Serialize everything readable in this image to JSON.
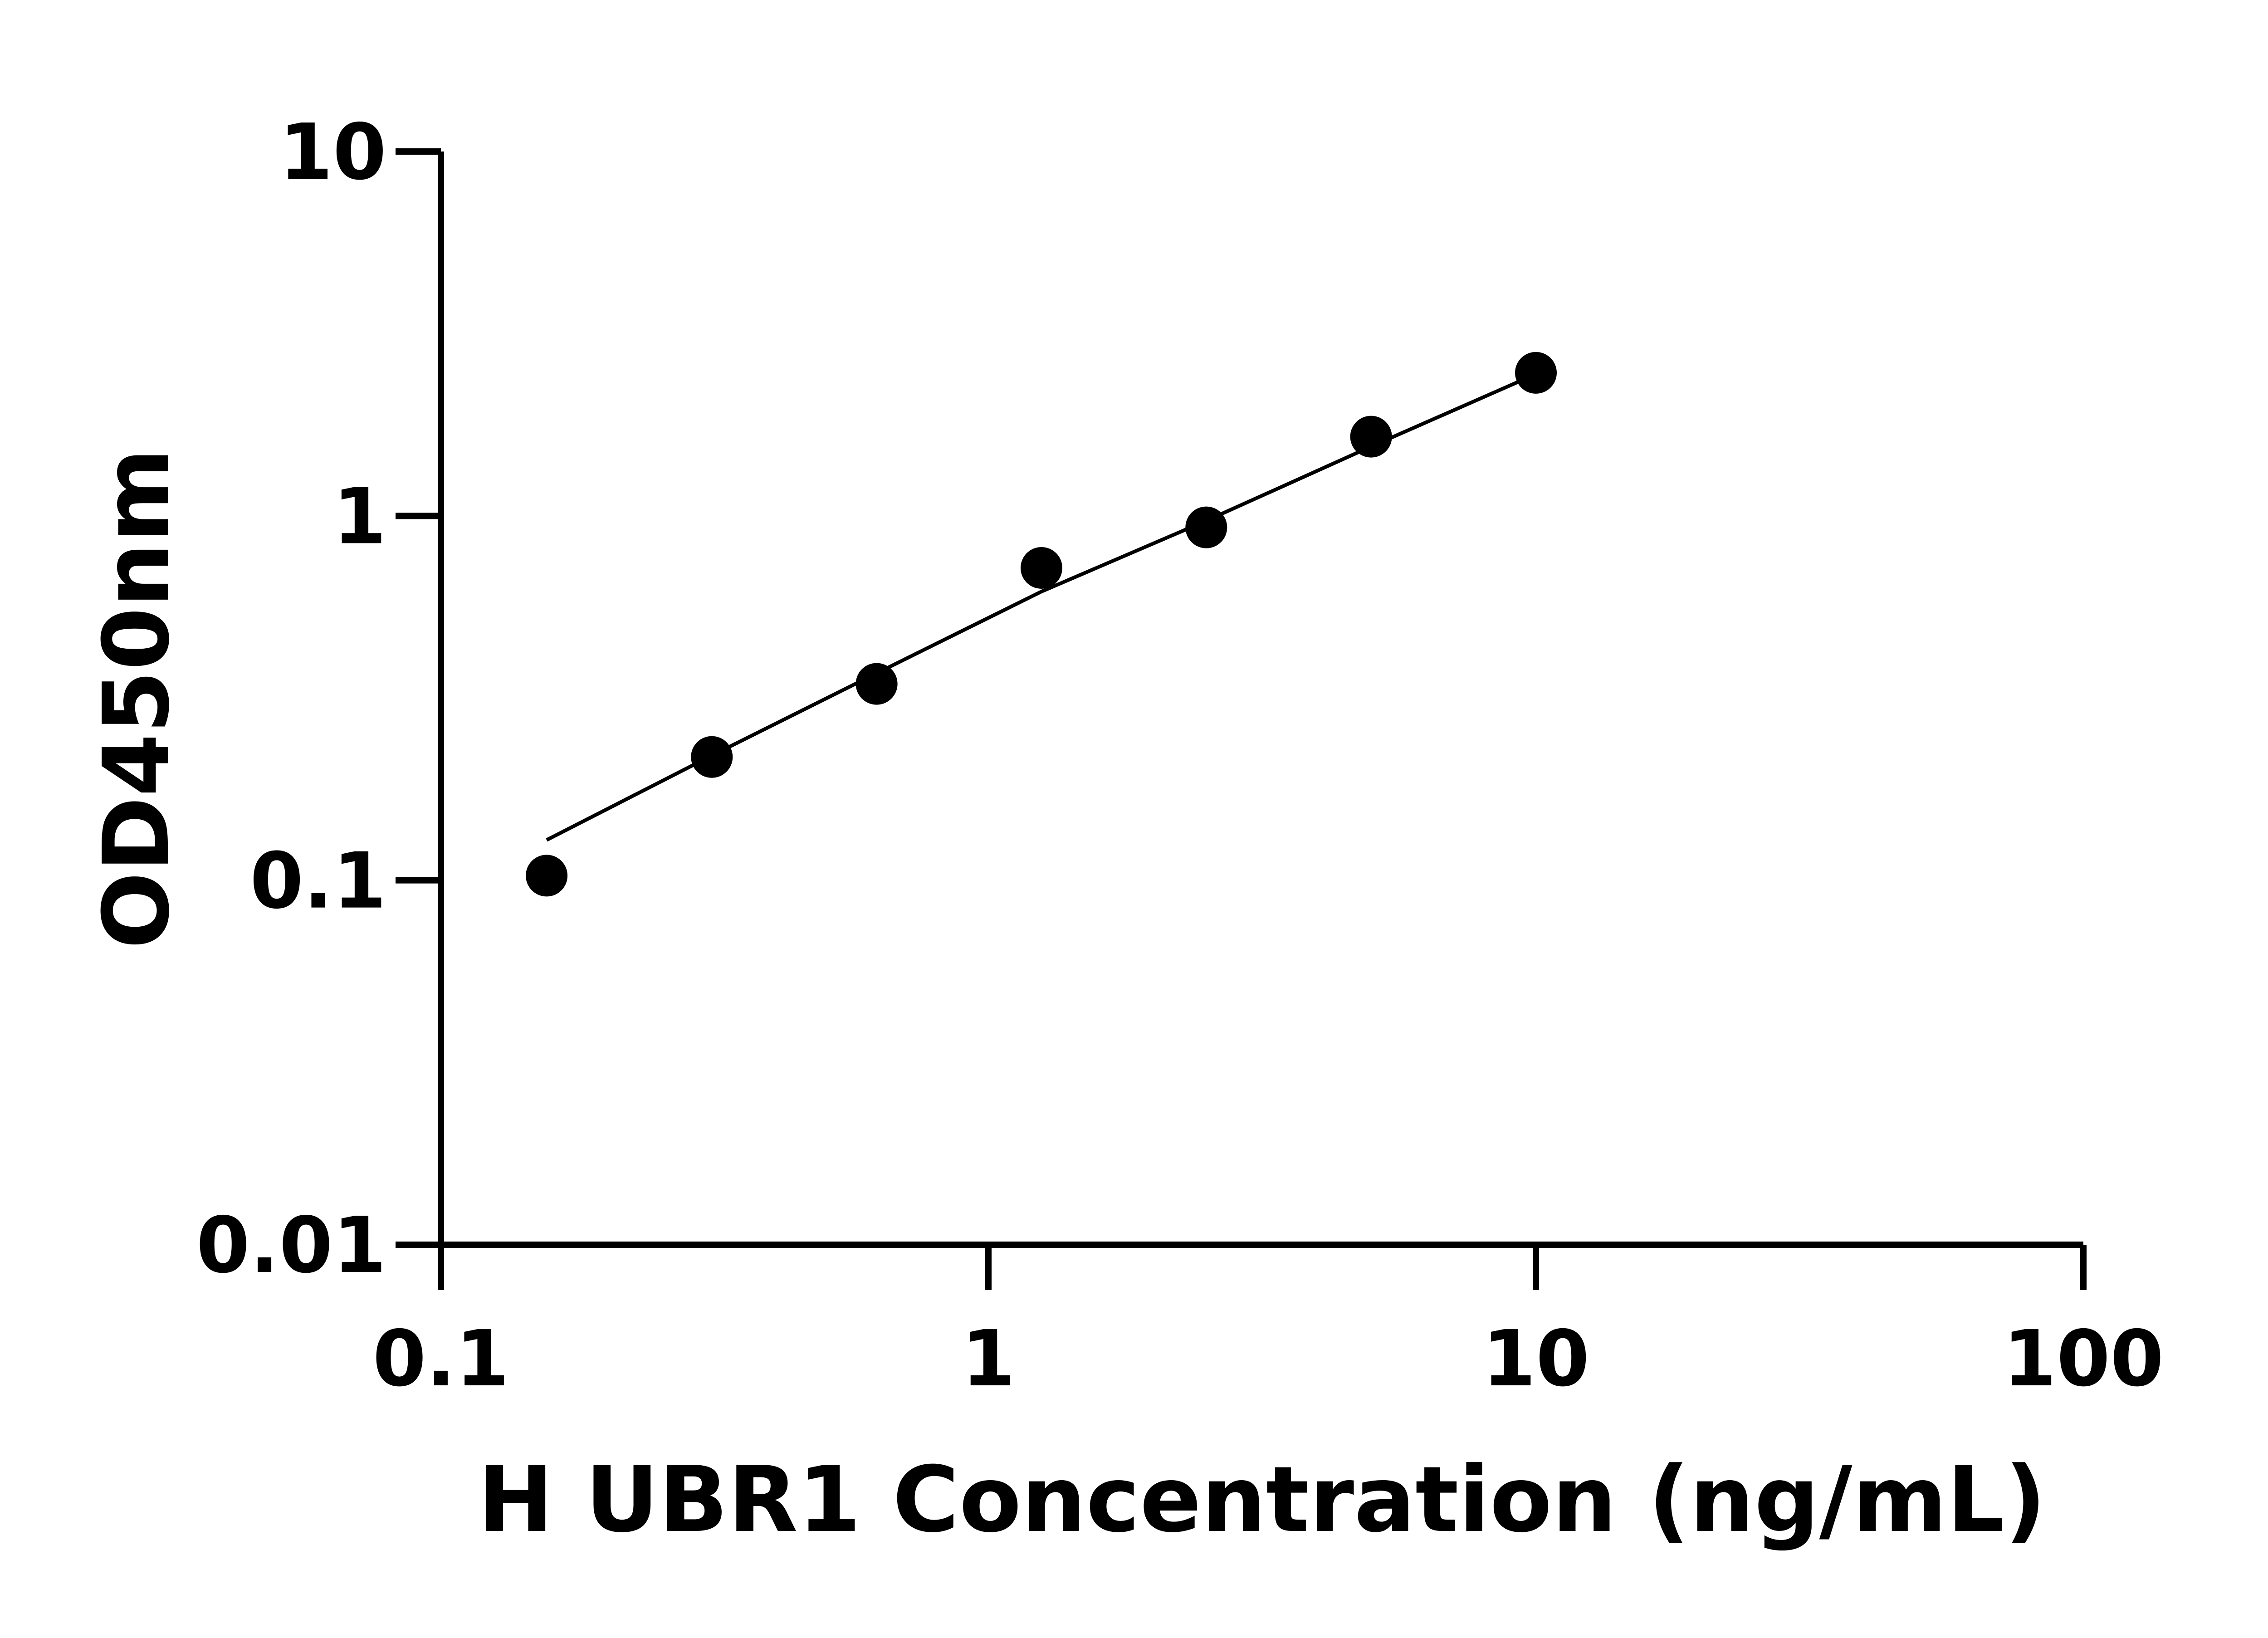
{
  "chart_data": {
    "type": "scatter",
    "title": "",
    "xlabel": "H UBR1 Concentration (ng/mL)",
    "ylabel": "OD450nm",
    "x_scale": "log",
    "y_scale": "log",
    "xlim": [
      0.1,
      100
    ],
    "ylim": [
      0.01,
      10
    ],
    "x_ticks": [
      0.1,
      1,
      10,
      100
    ],
    "x_tick_labels": [
      "0.1",
      "1",
      "10",
      "100"
    ],
    "y_ticks": [
      0.01,
      0.1,
      1,
      10
    ],
    "y_tick_labels": [
      "0.01",
      "0.1",
      "1",
      "10"
    ],
    "grid": false,
    "legend": "none",
    "colors": {
      "points": "#000000",
      "curve": "#000000",
      "axes": "#000000"
    },
    "series": [
      {
        "x": [
          0.156,
          0.3125,
          0.625,
          1.25,
          2.5,
          5,
          10
        ],
        "y": [
          0.103,
          0.218,
          0.346,
          0.72,
          0.93,
          1.65,
          2.47
        ]
      }
    ],
    "fit_curve": {
      "x": [
        0.156,
        0.3125,
        0.625,
        1.25,
        2.5,
        5,
        10
      ],
      "y": [
        0.129,
        0.22,
        0.37,
        0.62,
        0.97,
        1.55,
        2.45
      ]
    }
  }
}
